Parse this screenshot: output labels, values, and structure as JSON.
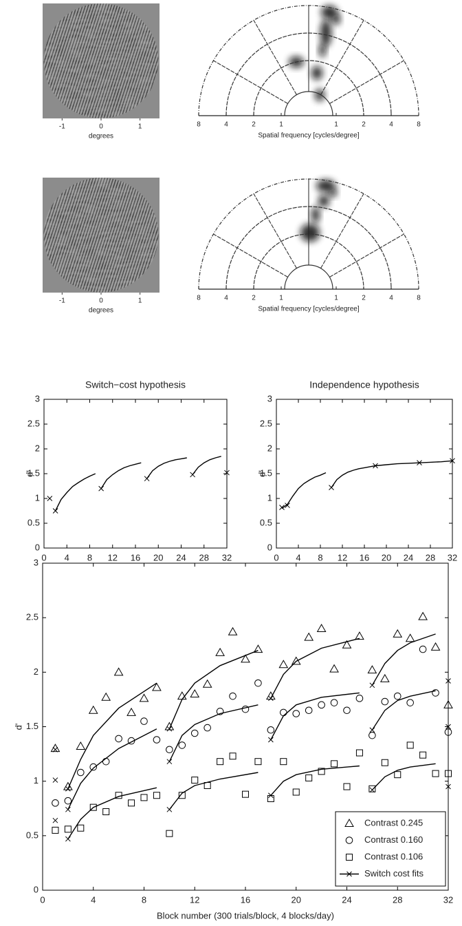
{
  "chart_data": [
    {
      "type": "image",
      "xlim": [
        -1.5,
        1.5
      ],
      "xticks": [
        -1,
        0,
        1
      ],
      "xlabel": "degrees"
    },
    {
      "type": "polar",
      "xticks": [
        {
          "value": -8,
          "label": "8"
        },
        {
          "value": -4,
          "label": "4"
        },
        {
          "value": -2,
          "label": "2"
        },
        {
          "value": -1,
          "label": "1"
        },
        1,
        2,
        4,
        8
      ],
      "xlabel": "Spatial frequency [cycles/degree]"
    },
    {
      "type": "image",
      "xlim": [
        -1.5,
        1.5
      ],
      "xticks": [
        -1,
        0,
        1
      ],
      "xlabel": "degrees"
    },
    {
      "type": "polar",
      "xticks": [
        {
          "value": -8,
          "label": "8"
        },
        {
          "value": -4,
          "label": "4"
        },
        {
          "value": -2,
          "label": "2"
        },
        {
          "value": -1,
          "label": "1"
        },
        1,
        2,
        4,
        8
      ],
      "xlabel": "Spatial frequency [cycles/degree]"
    },
    {
      "type": "line",
      "title": "Switch−cost hypothesis",
      "ylabel": "d'",
      "xlim": [
        0,
        32
      ],
      "ylim": [
        0,
        3
      ],
      "xticks": [
        0,
        4,
        8,
        12,
        16,
        20,
        24,
        28,
        32
      ],
      "yticks": [
        0,
        0.5,
        1,
        1.5,
        2,
        2.5,
        3
      ],
      "series": [
        {
          "line": true,
          "x": [
            2,
            3,
            4,
            5,
            6,
            7,
            8,
            9,
            null,
            10,
            11,
            12,
            13,
            14,
            15,
            16,
            17,
            null,
            18,
            19,
            20,
            21,
            22,
            23,
            24,
            25,
            null,
            26,
            27,
            28,
            29,
            30,
            31
          ],
          "values": [
            0.75,
            0.98,
            1.12,
            1.24,
            1.32,
            1.39,
            1.45,
            1.5,
            null,
            1.2,
            1.38,
            1.48,
            1.56,
            1.62,
            1.66,
            1.69,
            1.72,
            null,
            1.4,
            1.56,
            1.65,
            1.71,
            1.75,
            1.78,
            1.8,
            1.82,
            null,
            1.48,
            1.63,
            1.72,
            1.78,
            1.82,
            1.85
          ]
        },
        {
          "marker": "x",
          "x": [
            1,
            2,
            10,
            18,
            26,
            32
          ],
          "values": [
            1.0,
            0.75,
            1.2,
            1.4,
            1.48,
            1.52
          ]
        }
      ]
    },
    {
      "type": "line",
      "title": "Independence hypothesis",
      "ylabel": "d'",
      "xlim": [
        0,
        32
      ],
      "ylim": [
        0,
        3
      ],
      "xticks": [
        0,
        4,
        8,
        12,
        16,
        20,
        24,
        28,
        32
      ],
      "yticks": [
        0,
        0.5,
        1,
        1.5,
        2,
        2.5,
        3
      ],
      "series": [
        {
          "line": true,
          "x": [
            1,
            2,
            3,
            4,
            5,
            6,
            7,
            8,
            9,
            null,
            10,
            11,
            12,
            13,
            14,
            15,
            16,
            17,
            18,
            20,
            22,
            24,
            26,
            28,
            30,
            32
          ],
          "values": [
            0.8,
            0.88,
            1.05,
            1.2,
            1.3,
            1.37,
            1.43,
            1.47,
            1.52,
            null,
            1.22,
            1.38,
            1.47,
            1.53,
            1.57,
            1.6,
            1.62,
            1.64,
            1.66,
            1.68,
            1.7,
            1.71,
            1.72,
            1.73,
            1.74,
            1.76
          ]
        },
        {
          "marker": "x",
          "x": [
            1,
            2,
            10,
            18,
            26,
            32
          ],
          "values": [
            0.82,
            0.86,
            1.22,
            1.66,
            1.72,
            1.76
          ]
        }
      ]
    },
    {
      "type": "scatter",
      "xlabel": "Block number  (300 trials/block, 4 blocks/day)",
      "ylabel": "d'",
      "xlim": [
        0,
        32
      ],
      "ylim": [
        0,
        3
      ],
      "xticks": [
        0,
        4,
        8,
        12,
        16,
        20,
        24,
        28,
        32
      ],
      "yticks": [
        0,
        0.5,
        1,
        1.5,
        2,
        2.5,
        3
      ],
      "legend": "lower right",
      "series": [
        {
          "name": "Contrast 0.245",
          "marker": "triangle",
          "x": [
            1,
            2,
            3,
            4,
            5,
            6,
            7,
            8,
            9,
            10,
            11,
            12,
            13,
            14,
            15,
            16,
            17,
            18,
            19,
            20,
            21,
            22,
            23,
            24,
            25,
            26,
            27,
            28,
            29,
            30,
            31,
            32
          ],
          "values": [
            1.3,
            0.95,
            1.32,
            1.65,
            1.77,
            2.0,
            1.63,
            1.76,
            1.86,
            1.5,
            1.78,
            1.8,
            1.89,
            2.18,
            2.37,
            2.12,
            2.21,
            1.78,
            2.07,
            2.1,
            2.32,
            2.4,
            2.03,
            2.25,
            2.33,
            2.02,
            1.94,
            2.35,
            2.31,
            2.51,
            2.23,
            1.7
          ]
        },
        {
          "name": "Contrast 0.160",
          "marker": "circle",
          "x": [
            1,
            2,
            3,
            4,
            5,
            6,
            7,
            8,
            9,
            10,
            11,
            12,
            13,
            14,
            15,
            16,
            17,
            18,
            19,
            20,
            21,
            22,
            23,
            24,
            25,
            26,
            27,
            28,
            29,
            30,
            31,
            32
          ],
          "values": [
            0.8,
            0.82,
            1.08,
            1.13,
            1.18,
            1.39,
            1.37,
            1.55,
            1.38,
            1.29,
            1.33,
            1.44,
            1.49,
            1.64,
            1.78,
            1.66,
            1.9,
            1.47,
            1.63,
            1.62,
            1.65,
            1.7,
            1.72,
            1.65,
            1.76,
            1.42,
            1.73,
            1.78,
            1.72,
            2.21,
            1.81,
            1.45
          ]
        },
        {
          "name": "Contrast 0.106",
          "marker": "square",
          "x": [
            1,
            2,
            3,
            4,
            5,
            6,
            7,
            8,
            9,
            10,
            11,
            12,
            13,
            14,
            15,
            16,
            17,
            18,
            19,
            20,
            21,
            22,
            23,
            24,
            25,
            26,
            27,
            28,
            29,
            30,
            31,
            32
          ],
          "values": [
            0.55,
            0.56,
            0.57,
            0.76,
            0.72,
            0.87,
            0.8,
            0.85,
            0.87,
            0.52,
            0.87,
            1.01,
            0.96,
            1.18,
            1.23,
            0.88,
            1.18,
            0.84,
            1.18,
            0.9,
            1.03,
            1.09,
            1.16,
            0.95,
            1.26,
            0.93,
            1.17,
            1.06,
            1.33,
            1.24,
            1.07,
            1.07
          ]
        },
        {
          "name": "Switch cost fits",
          "marker": "x",
          "legend_line": true,
          "x": [
            1,
            1,
            1,
            2,
            2,
            2,
            10,
            10,
            10,
            18,
            18,
            18,
            26,
            26,
            26,
            32,
            32,
            32
          ],
          "values": [
            1.29,
            1.01,
            0.64,
            0.93,
            0.74,
            0.47,
            1.48,
            1.18,
            0.74,
            1.76,
            1.38,
            0.87,
            1.88,
            1.47,
            0.92,
            1.92,
            1.5,
            0.95
          ]
        },
        {
          "line": true,
          "x": [
            2,
            3,
            4,
            6,
            9,
            null,
            10,
            11,
            12,
            14,
            17,
            null,
            18,
            19,
            20,
            22,
            25,
            null,
            26,
            27,
            28,
            29,
            31
          ],
          "values": [
            0.93,
            1.2,
            1.42,
            1.67,
            1.9,
            null,
            1.48,
            1.75,
            1.9,
            2.06,
            2.2,
            null,
            1.76,
            1.98,
            2.1,
            2.22,
            2.31,
            null,
            1.88,
            2.08,
            2.2,
            2.27,
            2.35
          ]
        },
        {
          "line": true,
          "x": [
            2,
            3,
            4,
            6,
            9,
            null,
            10,
            11,
            12,
            14,
            17,
            null,
            18,
            19,
            20,
            22,
            25,
            null,
            26,
            27,
            28,
            29,
            31
          ],
          "values": [
            0.74,
            0.98,
            1.12,
            1.3,
            1.48,
            null,
            1.18,
            1.42,
            1.52,
            1.62,
            1.7,
            null,
            1.38,
            1.6,
            1.7,
            1.77,
            1.81,
            null,
            1.47,
            1.65,
            1.74,
            1.78,
            1.83
          ]
        },
        {
          "line": true,
          "x": [
            2,
            3,
            4,
            6,
            9,
            null,
            10,
            11,
            12,
            14,
            17,
            null,
            18,
            19,
            20,
            22,
            25,
            null,
            26,
            27,
            28,
            29,
            31
          ],
          "values": [
            0.47,
            0.65,
            0.76,
            0.86,
            0.94,
            null,
            0.74,
            0.89,
            0.96,
            1.02,
            1.08,
            null,
            0.87,
            1.0,
            1.06,
            1.11,
            1.14,
            null,
            0.92,
            1.04,
            1.1,
            1.13,
            1.16
          ]
        }
      ]
    }
  ]
}
